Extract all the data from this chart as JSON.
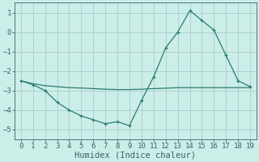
{
  "xlabel": "Humidex (Indice chaleur)",
  "x": [
    0,
    1,
    2,
    3,
    4,
    5,
    6,
    7,
    8,
    9,
    10,
    11,
    12,
    13,
    14,
    15,
    16,
    17,
    18,
    19
  ],
  "line1": [
    -2.5,
    -2.7,
    -3.0,
    -3.6,
    -4.0,
    -4.3,
    -4.5,
    -4.7,
    -4.6,
    -4.8,
    -3.5,
    -2.3,
    -0.8,
    0.0,
    1.1,
    0.6,
    0.1,
    -1.2,
    -2.5,
    -2.8
  ],
  "line2": [
    -2.5,
    -2.65,
    -2.75,
    -2.8,
    -2.85,
    -2.87,
    -2.9,
    -2.93,
    -2.95,
    -2.95,
    -2.93,
    -2.9,
    -2.88,
    -2.85,
    -2.85,
    -2.85,
    -2.85,
    -2.85,
    -2.85,
    -2.85
  ],
  "ylim": [
    -5.5,
    1.5
  ],
  "xlim": [
    -0.5,
    19.5
  ],
  "line_color": "#2a7d6e",
  "bg_color": "#cceee8",
  "grid_color": "#aacccc",
  "axis_color": "#336666",
  "yticks": [
    -5,
    -4,
    -3,
    -2,
    -1,
    0,
    1
  ],
  "xticks": [
    0,
    1,
    2,
    3,
    4,
    5,
    6,
    7,
    8,
    9,
    10,
    11,
    12,
    13,
    14,
    15,
    16,
    17,
    18,
    19
  ],
  "marker_size": 3.5,
  "tick_fontsize": 6.5,
  "xlabel_fontsize": 7.5
}
